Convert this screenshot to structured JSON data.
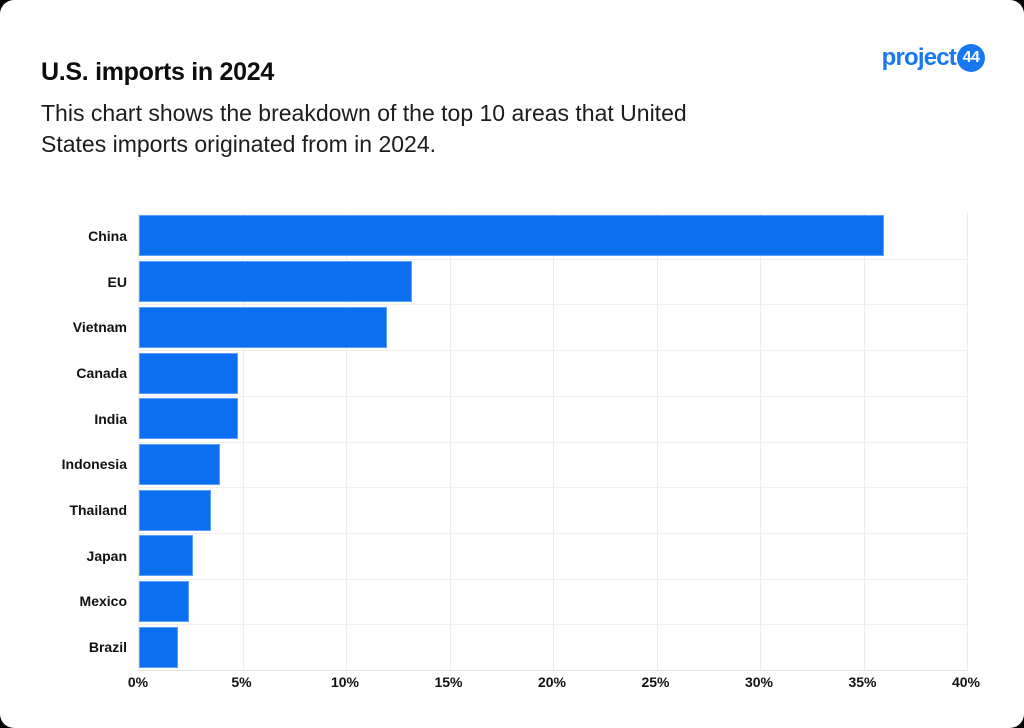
{
  "page": {
    "outside_background": "#000000",
    "card_background": "#ffffff"
  },
  "header": {
    "title": "U.S. imports in 2024",
    "logo": {
      "text": "project",
      "badge": "44",
      "color": "#1878f2"
    },
    "description_lines": [
      "This chart shows the breakdown of the top 10 areas that United",
      "States imports originated from in 2024."
    ]
  },
  "chart_data": {
    "type": "bar",
    "orientation": "horizontal",
    "title": "U.S. imports in 2024",
    "categories": [
      "China",
      "EU",
      "Vietnam",
      "Canada",
      "India",
      "Indonesia",
      "Thailand",
      "Japan",
      "Mexico",
      "Brazil"
    ],
    "values": [
      36,
      13.2,
      12,
      4.8,
      4.8,
      3.9,
      3.5,
      2.6,
      2.4,
      1.9
    ],
    "unit": "%",
    "xlabel": "",
    "ylabel": "",
    "xlim": [
      0,
      40
    ],
    "xticks": [
      {
        "label": "0%",
        "value": 0
      },
      {
        "label": "5%",
        "value": 5
      },
      {
        "label": "10%",
        "value": 10
      },
      {
        "label": "15%",
        "value": 15
      },
      {
        "label": "20%",
        "value": 20
      },
      {
        "label": "25%",
        "value": 25
      },
      {
        "label": "30%",
        "value": 30
      },
      {
        "label": "35%",
        "value": 35
      },
      {
        "label": "40%",
        "value": 40
      }
    ],
    "bar_color": "#0b6ff0",
    "grid": true,
    "grid_color": "#ececec",
    "legend": false
  }
}
